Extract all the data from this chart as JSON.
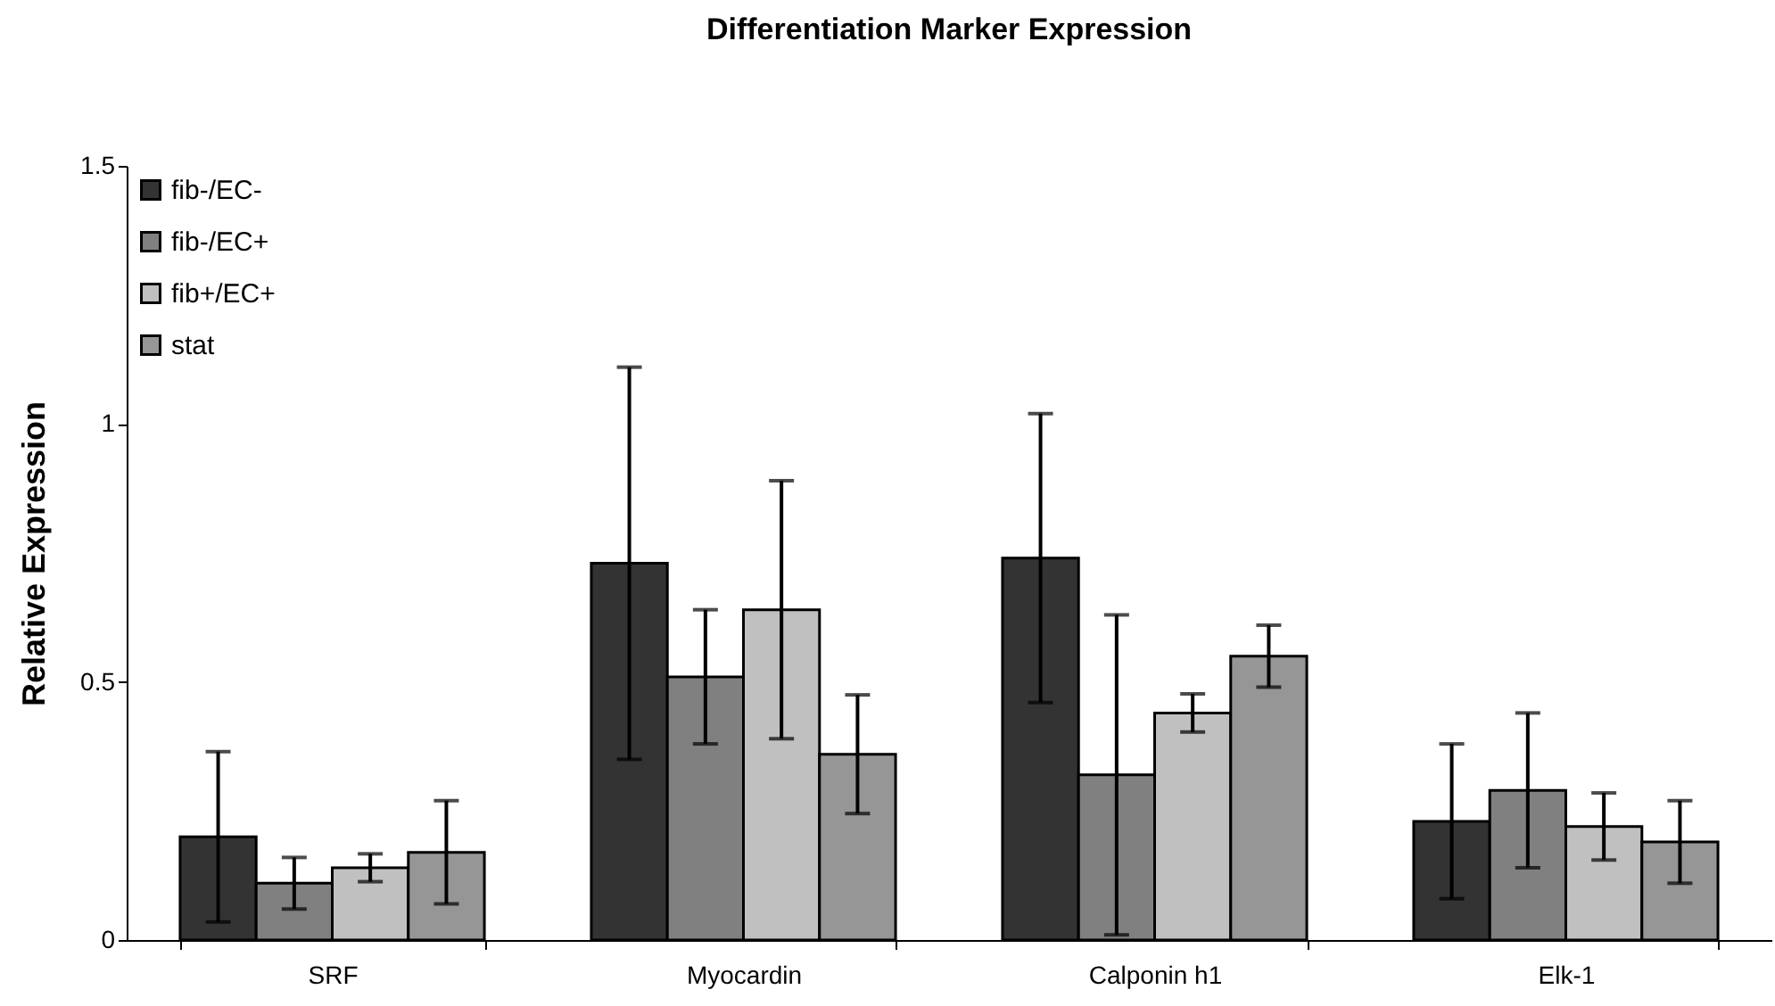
{
  "chart_data": {
    "type": "bar",
    "title": "Differentiation Marker Expression",
    "ylabel": "Relative Expression",
    "categories": [
      "SRF",
      "Myocardin",
      "Calponin h1",
      "Elk-1"
    ],
    "series": [
      {
        "name": "fib-/EC-",
        "color": "#333333",
        "values": [
          0.2,
          0.73,
          0.74,
          0.23
        ],
        "errors": [
          0.165,
          0.38,
          0.28,
          0.15
        ]
      },
      {
        "name": "fib-/EC+",
        "color": "#808080",
        "values": [
          0.11,
          0.51,
          0.32,
          0.29
        ],
        "errors": [
          0.05,
          0.13,
          0.31,
          0.15
        ]
      },
      {
        "name": "fib+/EC+",
        "color": "#c0c0c0",
        "values": [
          0.14,
          0.64,
          0.44,
          0.22
        ],
        "errors": [
          0.027,
          0.25,
          0.037,
          0.065
        ]
      },
      {
        "name": "stat",
        "color": "#969696",
        "values": [
          0.17,
          0.36,
          0.55,
          0.19
        ],
        "errors": [
          0.1,
          0.115,
          0.06,
          0.08
        ]
      }
    ],
    "ylim": [
      0,
      1.5
    ],
    "yticks": [
      0,
      0.5,
      1,
      1.5
    ],
    "grid": false,
    "legend": "top left"
  }
}
